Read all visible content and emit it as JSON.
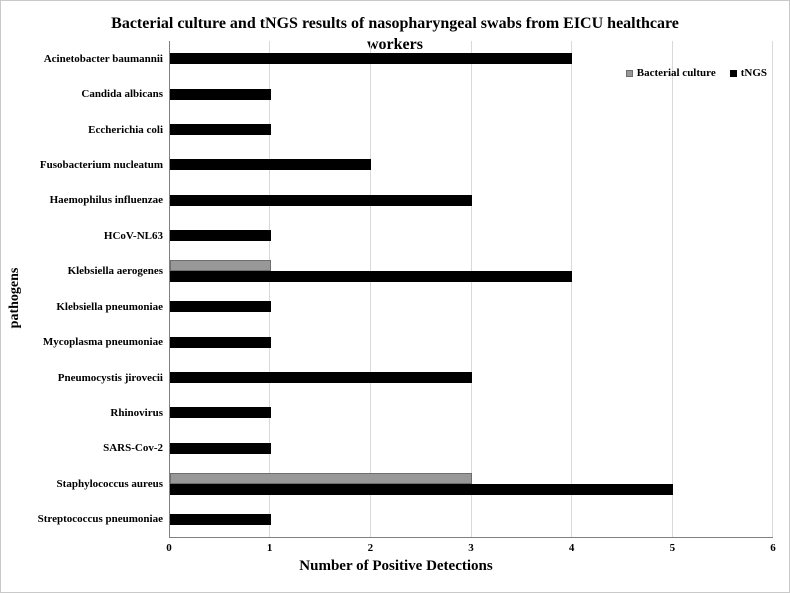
{
  "header": {
    "title_line1": "Bacterial culture and tNGS results of nasopharyngeal swabs from EICU healthcare",
    "title_line2": "workers"
  },
  "chart_data": {
    "type": "bar",
    "orientation": "horizontal",
    "title": "Bacterial culture and tNGS results of nasopharyngeal swabs from EICU healthcare workers",
    "xlabel": "Number of Positive Detections",
    "ylabel": "pathogens",
    "xlim": [
      0,
      6
    ],
    "xticks": [
      "0",
      "1",
      "2",
      "3",
      "4",
      "5",
      "6"
    ],
    "grid": true,
    "legend_position": "upper right",
    "categories": [
      "Acinetobacter baumannii",
      "Candida albicans",
      "Eccherichia coli",
      "Fusobacterium nucleatum",
      "Haemophilus influenzae",
      "HCoV-NL63",
      "Klebsiella aerogenes",
      "Klebsiella pneumoniae",
      "Mycoplasma pneumoniae",
      "Pneumocystis jirovecii",
      "Rhinovirus",
      "SARS-Cov-2",
      "Staphylococcus aureus",
      "Streptococcus pneumoniae"
    ],
    "series": [
      {
        "name": "Bacterial culture",
        "color": "#989898",
        "border_color": "#6e6e6e",
        "values": [
          0,
          0,
          0,
          0,
          0,
          0,
          1,
          0,
          0,
          0,
          0,
          0,
          3,
          0
        ]
      },
      {
        "name": "tNGS",
        "color": "#000000",
        "border_color": "#000000",
        "values": [
          4,
          1,
          1,
          2,
          3,
          1,
          4,
          1,
          1,
          3,
          1,
          1,
          5,
          1
        ]
      }
    ],
    "colors": {
      "gridline": "#d9d9d9",
      "axis_line": "#808080",
      "text": "#000000",
      "background": "#ffffff"
    }
  }
}
